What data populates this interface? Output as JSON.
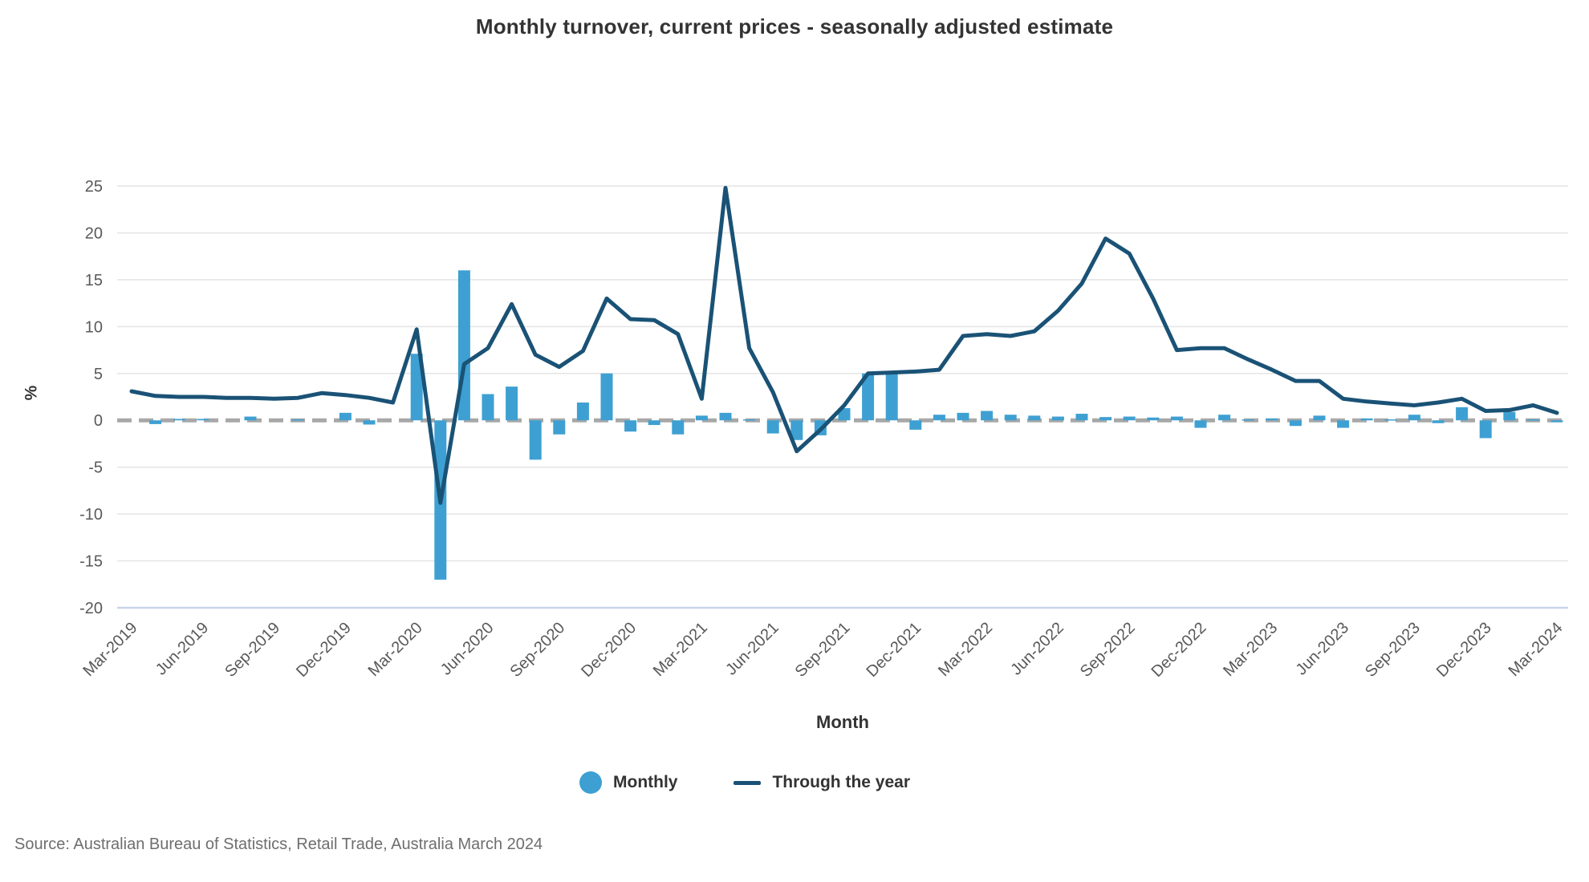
{
  "title": "Monthly turnover, current prices - seasonally adjusted estimate",
  "source": "Source: Australian Bureau of Statistics, Retail Trade, Australia March 2024",
  "legend": {
    "monthly_label": "Monthly",
    "through_year_label": "Through the year"
  },
  "colors": {
    "bar": "#3ea0d2",
    "line": "#1a5276",
    "grid": "#e4e4e4",
    "zero_line": "#a8a8a8",
    "axis_bottom": "#c9d5ec",
    "tick_text": "#595959",
    "title_text": "#333333",
    "source_text": "#6e6e6e"
  },
  "chart_data": {
    "type": "bar",
    "title": "Monthly turnover, current prices - seasonally adjusted estimate",
    "xlabel": "Month",
    "ylabel": "%",
    "ylim": [
      -20,
      25
    ],
    "ytick_step": 5,
    "yticks": [
      25,
      20,
      15,
      10,
      5,
      0,
      -5,
      -10,
      -15,
      -20
    ],
    "x_tick_every": 3,
    "grid": true,
    "legend_position": "bottom",
    "categories": [
      "Mar-2019",
      "Apr-2019",
      "May-2019",
      "Jun-2019",
      "Jul-2019",
      "Aug-2019",
      "Sep-2019",
      "Oct-2019",
      "Nov-2019",
      "Dec-2019",
      "Jan-2020",
      "Feb-2020",
      "Mar-2020",
      "Apr-2020",
      "May-2020",
      "Jun-2020",
      "Jul-2020",
      "Aug-2020",
      "Sep-2020",
      "Oct-2020",
      "Nov-2020",
      "Dec-2020",
      "Jan-2021",
      "Feb-2021",
      "Mar-2021",
      "Apr-2021",
      "May-2021",
      "Jun-2021",
      "Jul-2021",
      "Aug-2021",
      "Sep-2021",
      "Oct-2021",
      "Nov-2021",
      "Dec-2021",
      "Jan-2022",
      "Feb-2022",
      "Mar-2022",
      "Apr-2022",
      "May-2022",
      "Jun-2022",
      "Jul-2022",
      "Aug-2022",
      "Sep-2022",
      "Oct-2022",
      "Nov-2022",
      "Dec-2022",
      "Jan-2023",
      "Feb-2023",
      "Mar-2023",
      "Apr-2023",
      "May-2023",
      "Jun-2023",
      "Jul-2023",
      "Aug-2023",
      "Sep-2023",
      "Oct-2023",
      "Nov-2023",
      "Dec-2023",
      "Jan-2024",
      "Feb-2024",
      "Mar-2024"
    ],
    "series": [
      {
        "name": "Monthly",
        "type": "bar",
        "values": [
          0.0,
          -0.4,
          0.15,
          0.15,
          0.0,
          0.4,
          0.0,
          0.1,
          0.0,
          0.8,
          -0.45,
          0.0,
          7.1,
          -17.0,
          16.0,
          2.8,
          3.6,
          -4.2,
          -1.5,
          1.9,
          5.0,
          -1.2,
          -0.5,
          -1.5,
          0.5,
          0.8,
          0.1,
          -1.4,
          -2.1,
          -1.6,
          1.3,
          5.0,
          5.0,
          -1.0,
          0.6,
          0.8,
          1.0,
          0.6,
          0.5,
          0.4,
          0.7,
          0.35,
          0.4,
          0.3,
          0.4,
          -0.8,
          0.6,
          0.1,
          0.2,
          -0.6,
          0.5,
          -0.8,
          0.2,
          0.1,
          0.6,
          -0.3,
          1.4,
          -1.9,
          0.9,
          0.1,
          -0.2
        ]
      },
      {
        "name": "Through the year",
        "type": "line",
        "values": [
          3.1,
          2.6,
          2.5,
          2.5,
          2.4,
          2.4,
          2.3,
          2.4,
          2.9,
          2.7,
          2.4,
          1.9,
          9.7,
          -8.8,
          6.0,
          7.7,
          12.4,
          7.0,
          5.7,
          7.4,
          13.0,
          10.8,
          10.7,
          9.2,
          2.3,
          24.8,
          7.7,
          3.0,
          -3.3,
          -1.0,
          1.6,
          5.0,
          5.1,
          5.2,
          5.4,
          9.0,
          9.2,
          9.0,
          9.5,
          11.7,
          14.6,
          19.4,
          17.8,
          13.0,
          7.5,
          7.7,
          7.7,
          6.5,
          5.4,
          4.2,
          4.2,
          2.3,
          2.0,
          1.8,
          1.6,
          1.9,
          2.3,
          1.0,
          1.1,
          1.6,
          0.8
        ]
      }
    ]
  }
}
